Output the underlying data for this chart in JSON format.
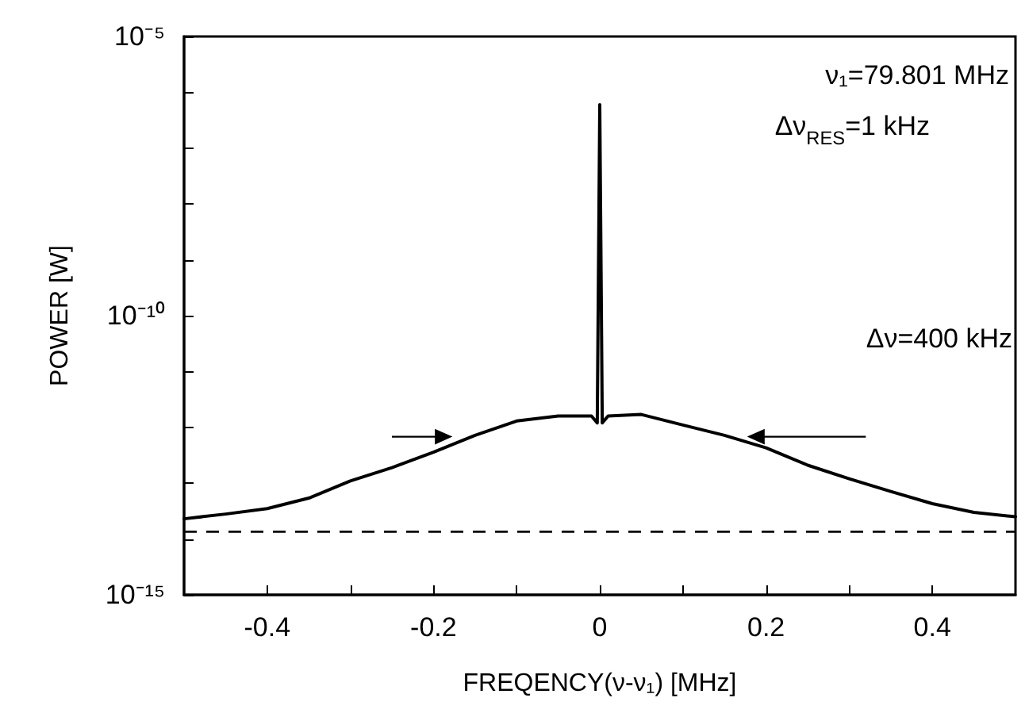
{
  "chart_data": {
    "type": "line",
    "xlabel": "FREQENCY(ν-ν₁) [MHz]",
    "ylabel": "POWER [W]",
    "annotations": [
      "ν₁=79.801 MHz",
      "Δν$_{RES}$=1 kHz",
      "Δν=400 kHz"
    ],
    "series": [
      {
        "color": "#000000",
        "x": [
          -0.5,
          -0.45,
          -0.4,
          -0.35,
          -0.3,
          -0.25,
          -0.2,
          -0.15,
          -0.1,
          -0.05,
          -0.01,
          -0.003,
          0,
          0.003,
          0.01,
          0.05,
          0.1,
          0.15,
          0.2,
          0.25,
          0.3,
          0.35,
          0.4,
          0.45,
          0.5
        ],
        "values": [
          2.3e-14,
          2.8e-14,
          3.5e-14,
          5.4e-14,
          1.1e-13,
          1.9e-13,
          3.6e-13,
          7.2e-13,
          1.3e-12,
          1.6e-12,
          1.6e-12,
          1.2e-12,
          6e-07,
          1.2e-12,
          1.6e-12,
          1.7e-12,
          1.1e-12,
          7.2e-13,
          4.3e-13,
          2.1e-13,
          1.2e-13,
          7.1e-14,
          4.3e-14,
          3e-14,
          2.5e-14
        ]
      }
    ],
    "ref_lines": [
      {
        "axis": "y",
        "value": 1.35e-14,
        "line_style": "dashed",
        "color": "#000000"
      }
    ],
    "log": "y",
    "grid": false,
    "marker": "none",
    "line_style": "solid",
    "xlim": [
      -0.5,
      0.5
    ],
    "xticks": [
      -0.4,
      {
        "value": -0.3,
        "label": null
      },
      -0.2,
      {
        "value": -0.1,
        "label": null
      },
      0,
      {
        "value": 0.1,
        "label": null
      },
      0.2,
      {
        "value": 0.3,
        "label": null
      },
      0.4
    ],
    "ylim": [
      1e-15,
      1e-05
    ],
    "yticks": [
      {
        "value": 1e-15,
        "label": "10⁻¹⁵"
      },
      {
        "value": 1e-14,
        "label": null
      },
      {
        "value": 1e-13,
        "label": null
      },
      {
        "value": 1e-12,
        "label": null
      },
      {
        "value": 1e-11,
        "label": null
      },
      {
        "value": 1e-10,
        "label": "10⁻¹⁰"
      },
      {
        "value": 1e-09,
        "label": null
      },
      {
        "value": 1e-08,
        "label": null
      },
      {
        "value": 1e-07,
        "label": null
      },
      {
        "value": 1e-06,
        "label": null
      },
      {
        "value": 1e-05,
        "label": "10⁻⁵"
      }
    ]
  }
}
